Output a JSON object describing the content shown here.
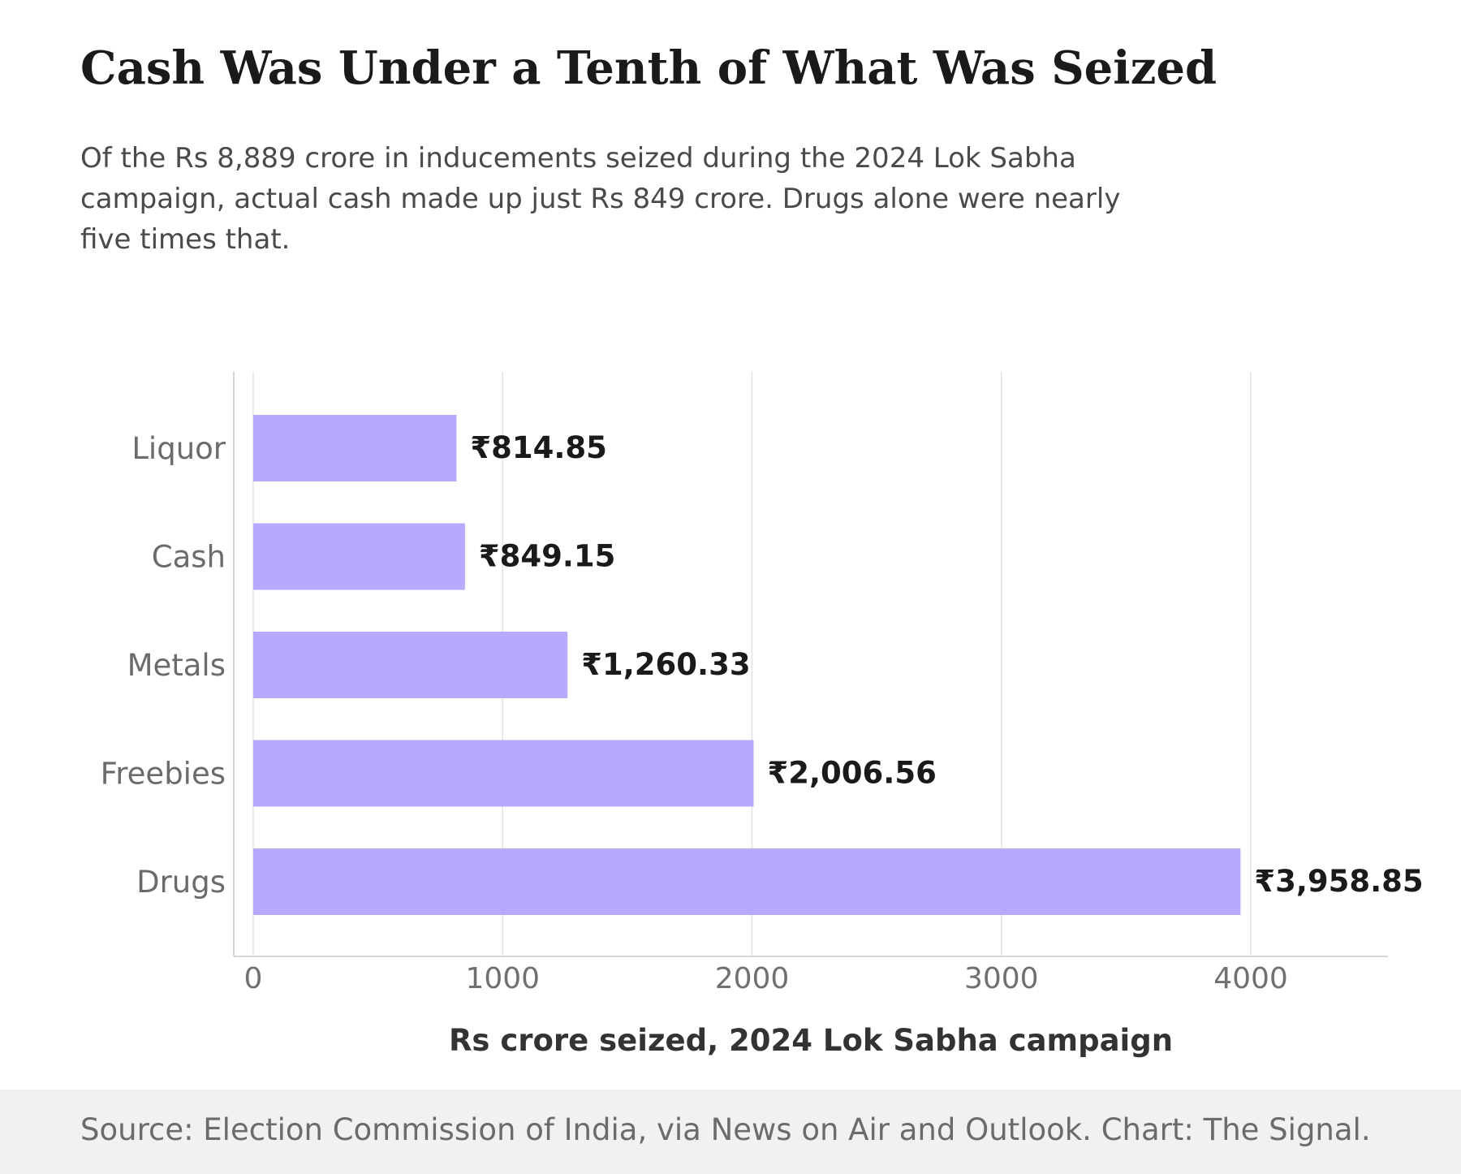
{
  "header": {
    "title": "Cash Was Under a Tenth of What Was Seized",
    "subtitle": "Of the Rs 8,889 crore in inducements seized during the 2024 Lok Sabha campaign, actual cash made up just Rs 849 crore. Drugs alone were nearly five times that."
  },
  "footer": {
    "source": "Source: Election Commission of India, via News on Air and Outlook. Chart: The Signal."
  },
  "chart_data": {
    "type": "bar",
    "orientation": "horizontal",
    "categories": [
      "Liquor",
      "Cash",
      "Metals",
      "Freebies",
      "Drugs"
    ],
    "values": [
      814.85,
      849.15,
      1260.33,
      2006.56,
      3958.85
    ],
    "value_labels": [
      "₹814.85",
      "₹849.15",
      "₹1,260.33",
      "₹2,006.56",
      "₹3,958.85"
    ],
    "xlabel": "Rs crore seized, 2024 Lok Sabha campaign",
    "ylabel": "",
    "xlim": [
      0,
      4500
    ],
    "xticks": [
      0,
      1000,
      2000,
      3000,
      4000
    ],
    "grid": "vertical",
    "legend": "none",
    "colors": {
      "bar": "#b8a9ff",
      "grid": "#e3e3e3",
      "axis": "#d6d6d6",
      "tick_label": "#707070",
      "category_label": "#6b6b6b",
      "value_label": "#1a1a1a",
      "axis_title": "#333333"
    }
  }
}
